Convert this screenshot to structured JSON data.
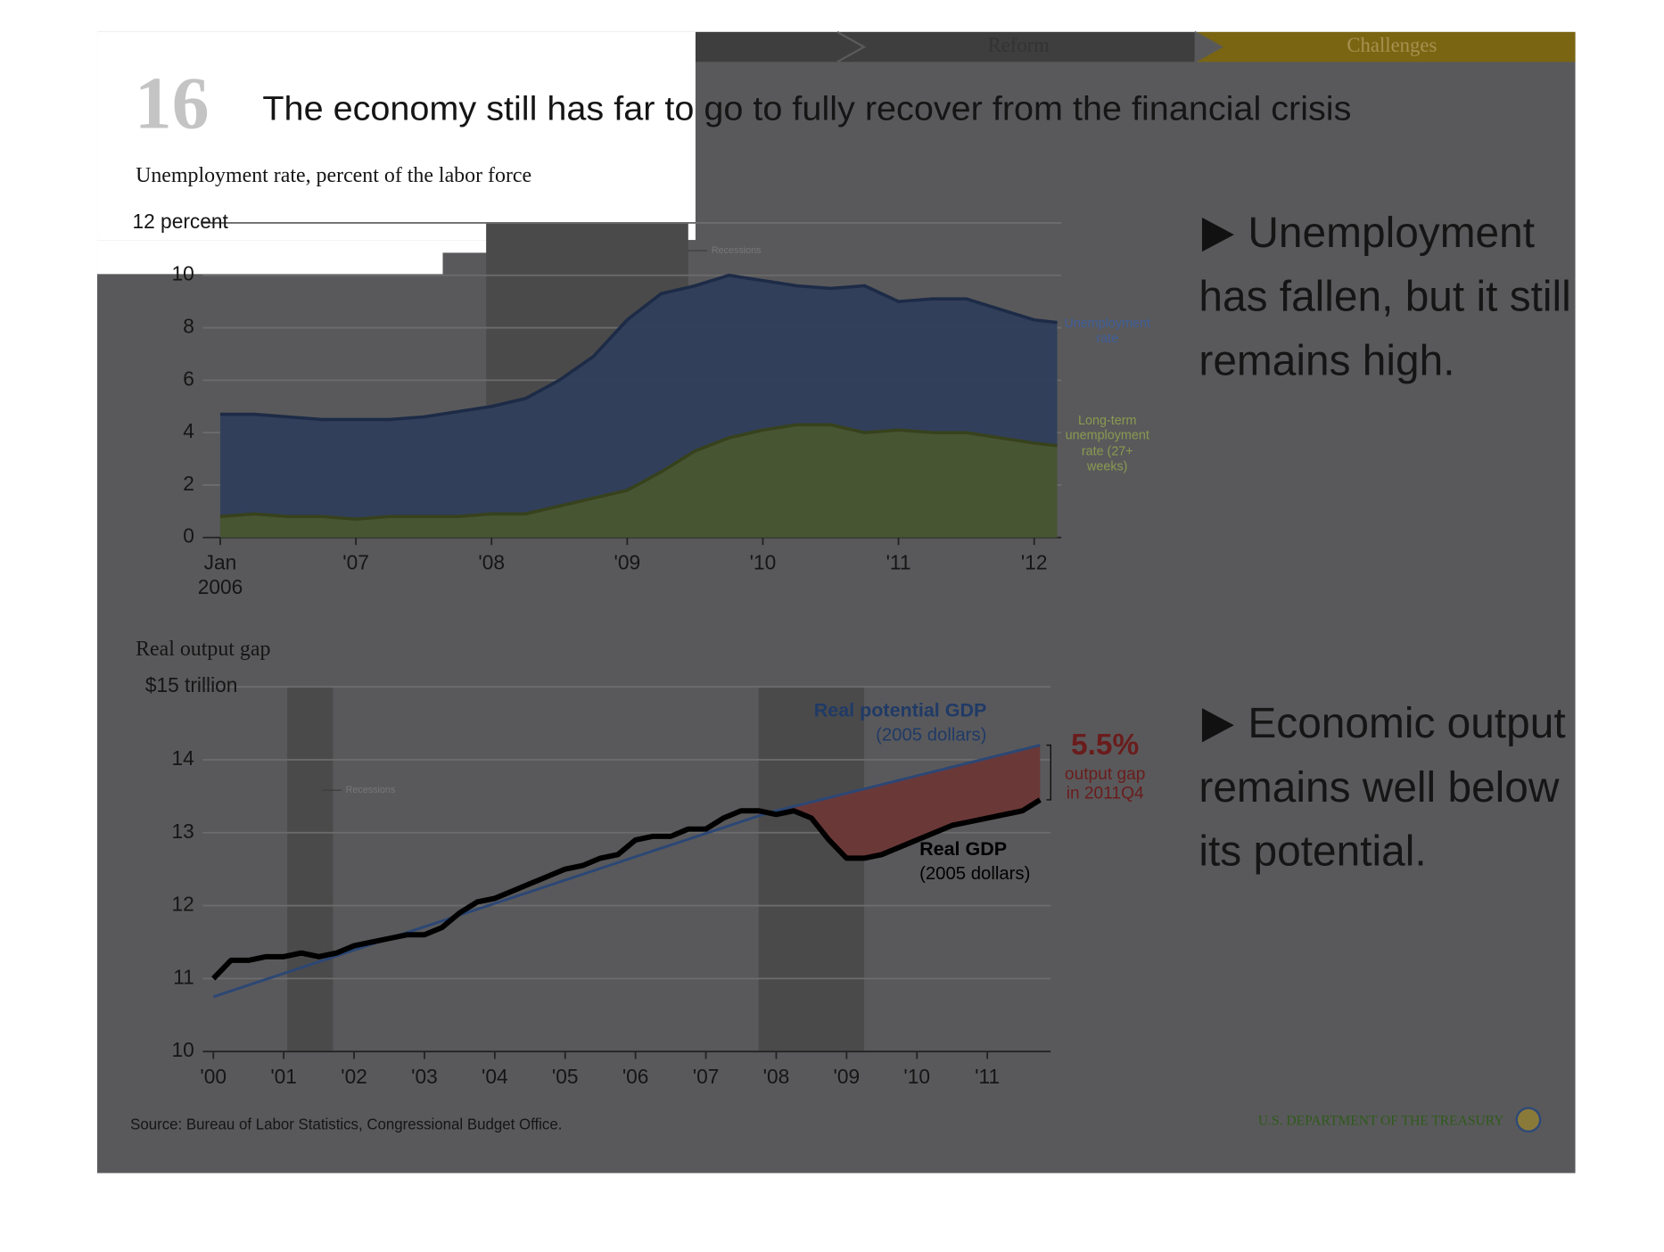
{
  "nav": [
    "Reform",
    "Challenges"
  ],
  "number": "16",
  "title": "The economy still has far to go to fully recover from the financial crisis",
  "bullets": [
    [
      "Unemployment",
      "has fallen, but it still",
      "remains high."
    ],
    [
      "Economic output",
      "remains well below",
      "its potential."
    ]
  ],
  "source": "Source: Bureau of Labor Statistics, Congressional Budget Office.",
  "footer": "U.S. DEPARTMENT OF THE TREASURY",
  "chart_data": [
    {
      "type": "area",
      "title": "Unemployment rate, percent of the labor force",
      "x": [
        2006,
        2006.25,
        2006.5,
        2006.75,
        2007,
        2007.25,
        2007.5,
        2007.75,
        2008,
        2008.25,
        2008.5,
        2008.75,
        2009,
        2009.25,
        2009.5,
        2009.75,
        2010,
        2010.25,
        2010.5,
        2010.75,
        2011,
        2011.25,
        2011.5,
        2011.75,
        2012,
        2012.17
      ],
      "series": [
        {
          "name": "Unemployment rate",
          "color": "#2f3e5c",
          "line_color": "#1d2b47",
          "values": [
            4.7,
            4.7,
            4.6,
            4.5,
            4.5,
            4.5,
            4.6,
            4.8,
            5.0,
            5.3,
            6.0,
            6.9,
            8.3,
            9.3,
            9.6,
            10.0,
            9.8,
            9.6,
            9.5,
            9.6,
            9.0,
            9.1,
            9.1,
            8.7,
            8.3,
            8.2
          ]
        },
        {
          "name": "Long-term unemployment rate (27+ weeks)",
          "color": "#4a5631",
          "line_color": "#37421d",
          "values": [
            0.8,
            0.9,
            0.8,
            0.8,
            0.7,
            0.8,
            0.8,
            0.8,
            0.9,
            0.9,
            1.2,
            1.5,
            1.8,
            2.5,
            3.3,
            3.8,
            4.1,
            4.3,
            4.3,
            4.0,
            4.1,
            4.0,
            4.0,
            3.8,
            3.6,
            3.5
          ]
        }
      ],
      "recessions": [
        [
          2007.96,
          2009.45
        ]
      ],
      "recession_label": "Recessions",
      "recession_color": "#4a4a4a",
      "xlim": [
        2005.95,
        2012.2
      ],
      "xticks": [
        {
          "value": 2006,
          "label": "Jan 2006"
        },
        {
          "value": 2007,
          "label": "'07"
        },
        {
          "value": 2008,
          "label": "'08"
        },
        {
          "value": 2009,
          "label": "'09"
        },
        {
          "value": 2010,
          "label": "'10"
        },
        {
          "value": 2011,
          "label": "'11"
        },
        {
          "value": 2012,
          "label": "'12"
        }
      ],
      "ylim": [
        0,
        12
      ],
      "yticks": [
        0,
        2,
        4,
        6,
        8,
        10,
        {
          "value": 12,
          "label": "12 percent"
        }
      ],
      "grid": true
    },
    {
      "type": "line",
      "title": "Real output gap",
      "x": [
        2000,
        2000.25,
        2000.5,
        2000.75,
        2001,
        2001.25,
        2001.5,
        2001.75,
        2002,
        2002.25,
        2002.5,
        2002.75,
        2003,
        2003.25,
        2003.5,
        2003.75,
        2004,
        2004.25,
        2004.5,
        2004.75,
        2005,
        2005.25,
        2005.5,
        2005.75,
        2006,
        2006.25,
        2006.5,
        2006.75,
        2007,
        2007.25,
        2007.5,
        2007.75,
        2008,
        2008.25,
        2008.5,
        2008.75,
        2009,
        2009.25,
        2009.5,
        2009.75,
        2010,
        2010.25,
        2010.5,
        2010.75,
        2011,
        2011.25,
        2011.5,
        2011.75
      ],
      "series": [
        {
          "name": "Real potential GDP",
          "color": "#2c4775",
          "values": [
            10.75,
            10.83,
            10.91,
            10.99,
            11.07,
            11.15,
            11.23,
            11.31,
            11.39,
            11.47,
            11.55,
            11.63,
            11.71,
            11.79,
            11.87,
            11.95,
            12.03,
            12.11,
            12.19,
            12.27,
            12.35,
            12.43,
            12.51,
            12.59,
            12.67,
            12.75,
            12.83,
            12.91,
            12.99,
            13.07,
            13.15,
            13.23,
            13.3,
            13.36,
            13.42,
            13.48,
            13.54,
            13.6,
            13.66,
            13.72,
            13.78,
            13.84,
            13.9,
            13.96,
            14.02,
            14.08,
            14.14,
            14.2
          ]
        },
        {
          "name": "Real GDP",
          "color": "#000000",
          "values": [
            11.0,
            11.25,
            11.25,
            11.3,
            11.3,
            11.35,
            11.3,
            11.35,
            11.45,
            11.5,
            11.55,
            11.6,
            11.6,
            11.7,
            11.9,
            12.05,
            12.1,
            12.2,
            12.3,
            12.4,
            12.5,
            12.55,
            12.65,
            12.7,
            12.9,
            12.95,
            12.95,
            13.05,
            13.05,
            13.2,
            13.3,
            13.3,
            13.25,
            13.3,
            13.2,
            12.9,
            12.65,
            12.65,
            12.7,
            12.8,
            12.9,
            13.0,
            13.1,
            13.15,
            13.2,
            13.25,
            13.3,
            13.45
          ]
        }
      ],
      "gap_color": "#6b3838",
      "annotations": [
        "(2005 dollars)",
        "(2005 dollars)",
        "5.5%",
        "output gap in 2011Q4"
      ],
      "recessions": [
        [
          2001.05,
          2001.7
        ],
        [
          2007.75,
          2009.25
        ]
      ],
      "recession_label": "Recessions",
      "recession_color": "#4a4a4a",
      "xlim": [
        1999.85,
        2011.9
      ],
      "xticks": [
        {
          "value": 2000,
          "label": "'00"
        },
        {
          "value": 2001,
          "label": "'01"
        },
        {
          "value": 2002,
          "label": "'02"
        },
        {
          "value": 2003,
          "label": "'03"
        },
        {
          "value": 2004,
          "label": "'04"
        },
        {
          "value": 2005,
          "label": "'05"
        },
        {
          "value": 2006,
          "label": "'06"
        },
        {
          "value": 2007,
          "label": "'07"
        },
        {
          "value": 2008,
          "label": "'08"
        },
        {
          "value": 2009,
          "label": "'09"
        },
        {
          "value": 2010,
          "label": "'10"
        },
        {
          "value": 2011,
          "label": "'11"
        }
      ],
      "ylim": [
        10,
        15
      ],
      "yticks": [
        10,
        11,
        12,
        13,
        14,
        {
          "value": 15,
          "label": "$15 trillion"
        }
      ],
      "grid": true
    }
  ]
}
